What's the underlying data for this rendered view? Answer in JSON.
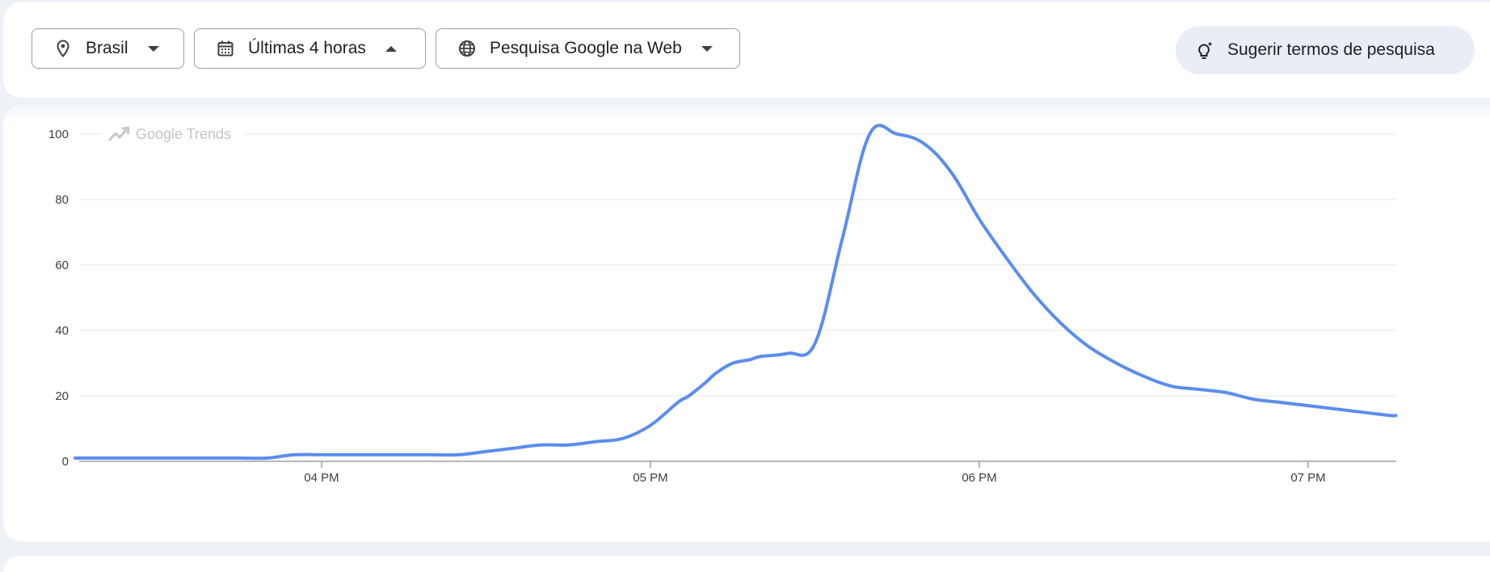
{
  "filters": {
    "location": {
      "label": "Brasil",
      "icon": "location-pin-icon"
    },
    "time_range": {
      "label": "Últimas 4 horas",
      "icon": "calendar-icon"
    },
    "property": {
      "label": "Pesquisa Google na Web",
      "icon": "globe-icon"
    }
  },
  "suggest_button": {
    "label": "Sugerir termos de pesquisa",
    "icon": "lightbulb-sparkle-icon"
  },
  "watermark": {
    "label": "Google Trends",
    "icon": "trending-up-icon"
  },
  "colors": {
    "line": "#5b8def",
    "grid": "#e6e6e6",
    "axis": "#9aa0a6",
    "tick_text": "#3c4043"
  },
  "chart_data": {
    "type": "line",
    "title": "",
    "xlabel": "",
    "ylabel": "",
    "ylim": [
      0,
      100
    ],
    "yticks": [
      0,
      20,
      40,
      60,
      80,
      100
    ],
    "xticks": [
      "04 PM",
      "05 PM",
      "06 PM",
      "07 PM"
    ],
    "grid": true,
    "x_minutes_from_3pm": [
      15,
      20,
      25,
      30,
      35,
      40,
      45,
      50,
      55,
      60,
      65,
      70,
      75,
      80,
      85,
      90,
      95,
      100,
      105,
      110,
      115,
      120,
      125,
      127,
      130,
      132,
      135,
      138,
      140,
      145,
      150,
      155,
      160,
      165,
      170,
      175,
      180,
      185,
      190,
      195,
      200,
      205,
      210,
      215,
      220,
      225,
      230,
      235,
      240,
      245,
      250,
      255,
      256
    ],
    "series": [
      {
        "values": [
          1,
          1,
          1,
          1,
          1,
          1,
          1,
          1,
          2,
          2,
          2,
          2,
          2,
          2,
          2,
          3,
          4,
          5,
          5,
          6,
          7,
          11,
          18,
          20,
          24,
          27,
          30,
          31,
          32,
          33,
          36,
          68,
          100,
          100,
          97,
          88,
          74,
          62,
          51,
          42,
          35,
          30,
          26,
          23,
          22,
          21,
          19,
          18,
          17,
          16,
          15,
          14,
          14
        ]
      }
    ]
  }
}
